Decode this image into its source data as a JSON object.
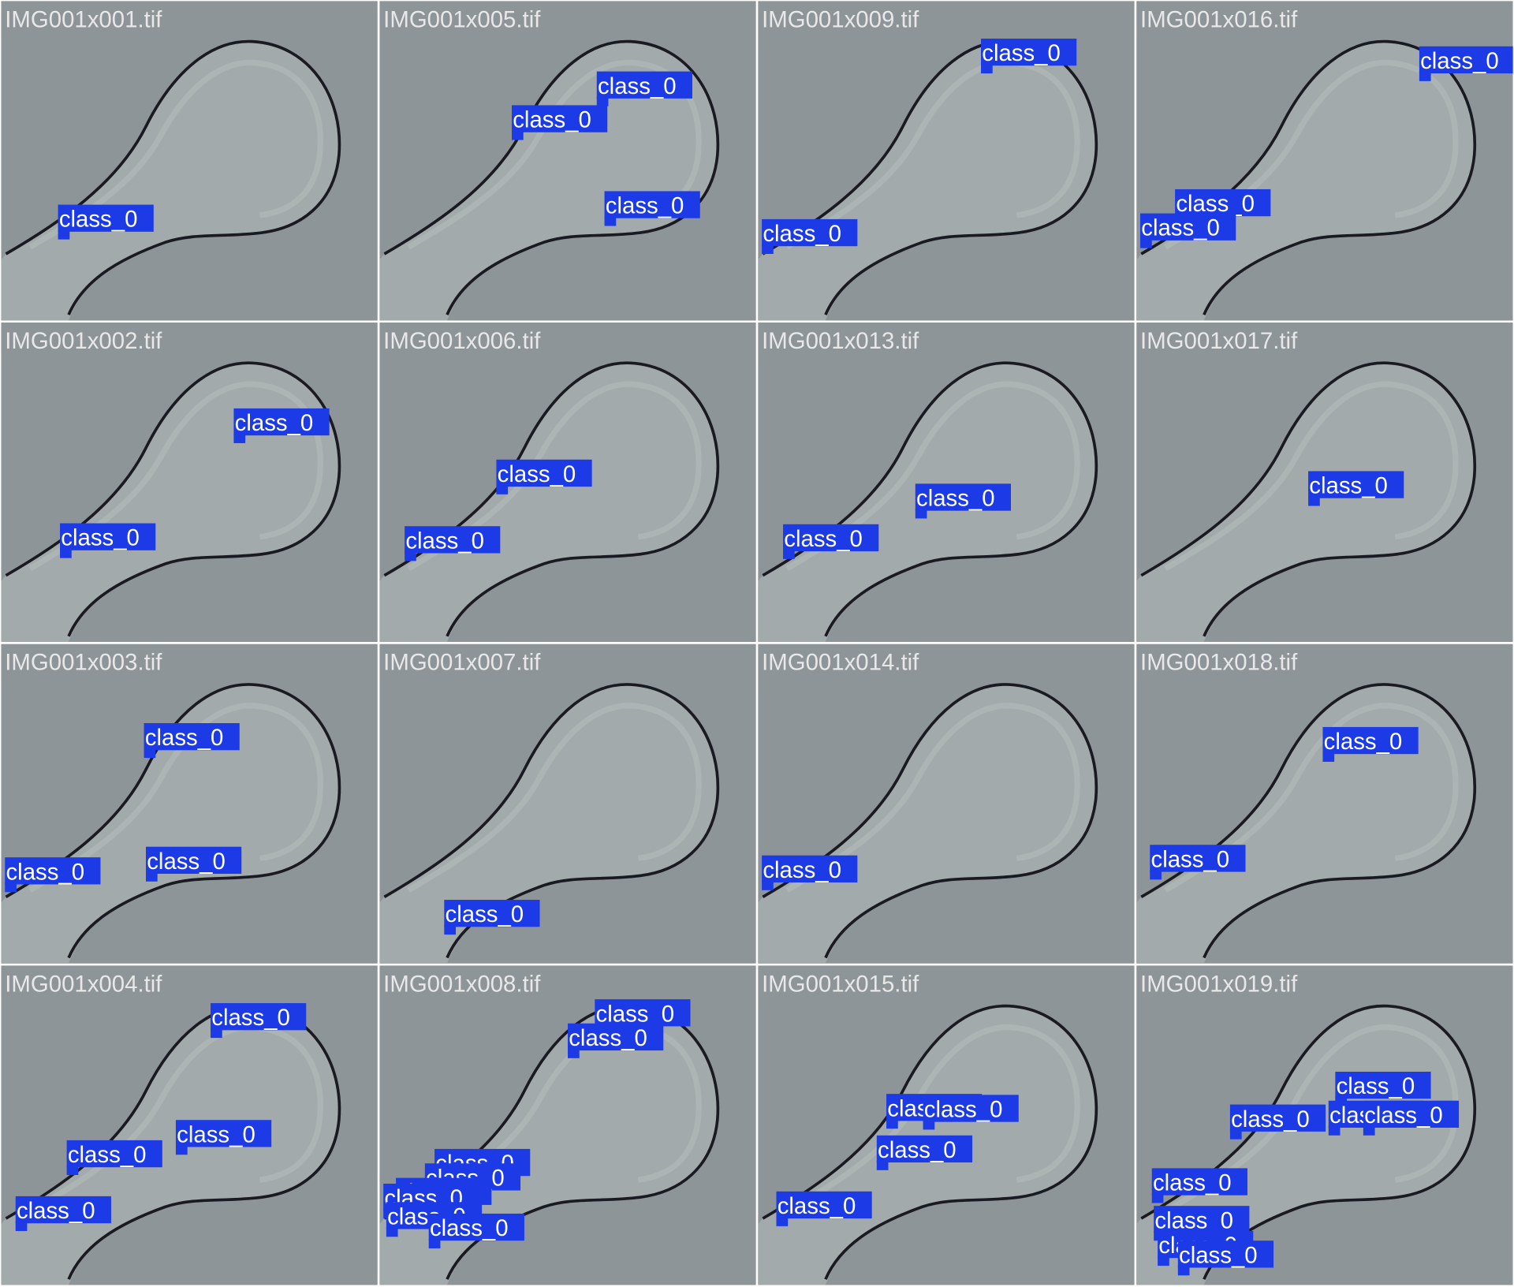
{
  "tiles": [
    {
      "filename": "IMG001x001.tif",
      "labels": [
        "class_0"
      ]
    },
    {
      "filename": "IMG001x005.tif",
      "labels": [
        "class_0",
        "class_0",
        "class_0"
      ]
    },
    {
      "filename": "IMG001x009.tif",
      "labels": [
        "class_0",
        "class_0"
      ]
    },
    {
      "filename": "IMG001x016.tif",
      "labels": [
        "class_0",
        "class_0",
        "class_0"
      ]
    },
    {
      "filename": "IMG001x002.tif",
      "labels": [
        "class_0",
        "class_0"
      ]
    },
    {
      "filename": "IMG001x006.tif",
      "labels": [
        "class_0",
        "class_0"
      ]
    },
    {
      "filename": "IMG001x013.tif",
      "labels": [
        "class_0",
        "class_0"
      ]
    },
    {
      "filename": "IMG001x017.tif",
      "labels": [
        "class_0"
      ]
    },
    {
      "filename": "IMG001x003.tif",
      "labels": [
        "class_0",
        "class_0",
        "class_0"
      ]
    },
    {
      "filename": "IMG001x007.tif",
      "labels": [
        "class_0"
      ]
    },
    {
      "filename": "IMG001x014.tif",
      "labels": [
        "class_0"
      ]
    },
    {
      "filename": "IMG001x018.tif",
      "labels": [
        "class_0",
        "class_0"
      ]
    },
    {
      "filename": "IMG001x004.tif",
      "labels": [
        "class_0",
        "class_0",
        "class_0",
        "class_0"
      ]
    },
    {
      "filename": "IMG001x008.tif",
      "labels": [
        "class_0",
        "class_0",
        "class_0",
        "class_0",
        "class_0",
        "class_0",
        "class_0",
        "class_0"
      ]
    },
    {
      "filename": "IMG001x015.tif",
      "labels": [
        "class_0",
        "class_0",
        "class_0",
        "class_0"
      ]
    },
    {
      "filename": "IMG001x019.tif",
      "labels": [
        "class_0",
        "class_0",
        "class_0",
        "class_0",
        "class_0",
        "class_0",
        "class_0",
        "class_0"
      ]
    }
  ]
}
